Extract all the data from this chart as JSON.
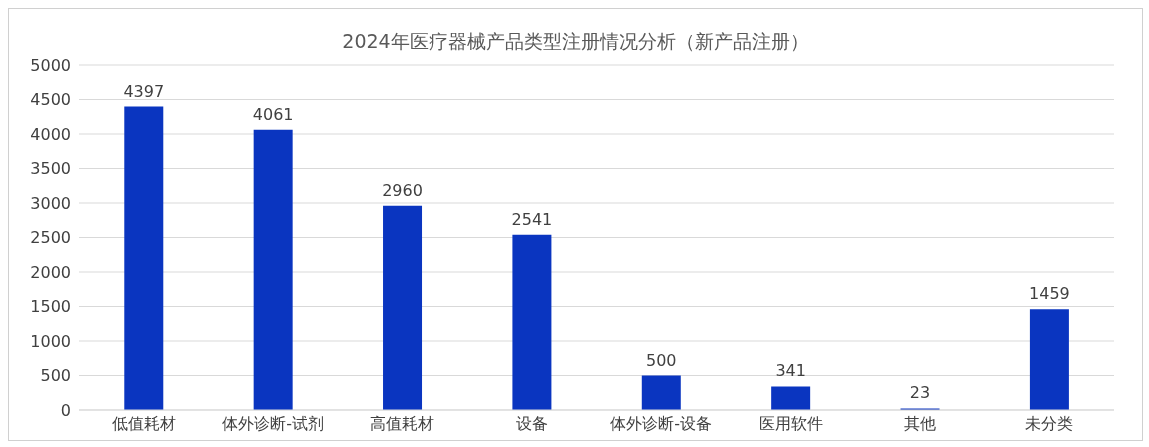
{
  "chart_data": {
    "type": "bar",
    "title": "2024年医疗器械产品类型注册情况分析（新产品注册）",
    "categories": [
      "低值耗材",
      "体外诊断-试剂",
      "高值耗材",
      "设备",
      "体外诊断-设备",
      "医用软件",
      "其他",
      "未分类"
    ],
    "values": [
      4397,
      4061,
      2960,
      2541,
      500,
      341,
      23,
      1459
    ],
    "color": "#0a35c0",
    "ylim": [
      0,
      5000
    ],
    "yticks": [
      0,
      500,
      1000,
      1500,
      2000,
      2500,
      3000,
      3500,
      4000,
      4500,
      5000
    ],
    "grid": "y",
    "data_labels": true
  }
}
